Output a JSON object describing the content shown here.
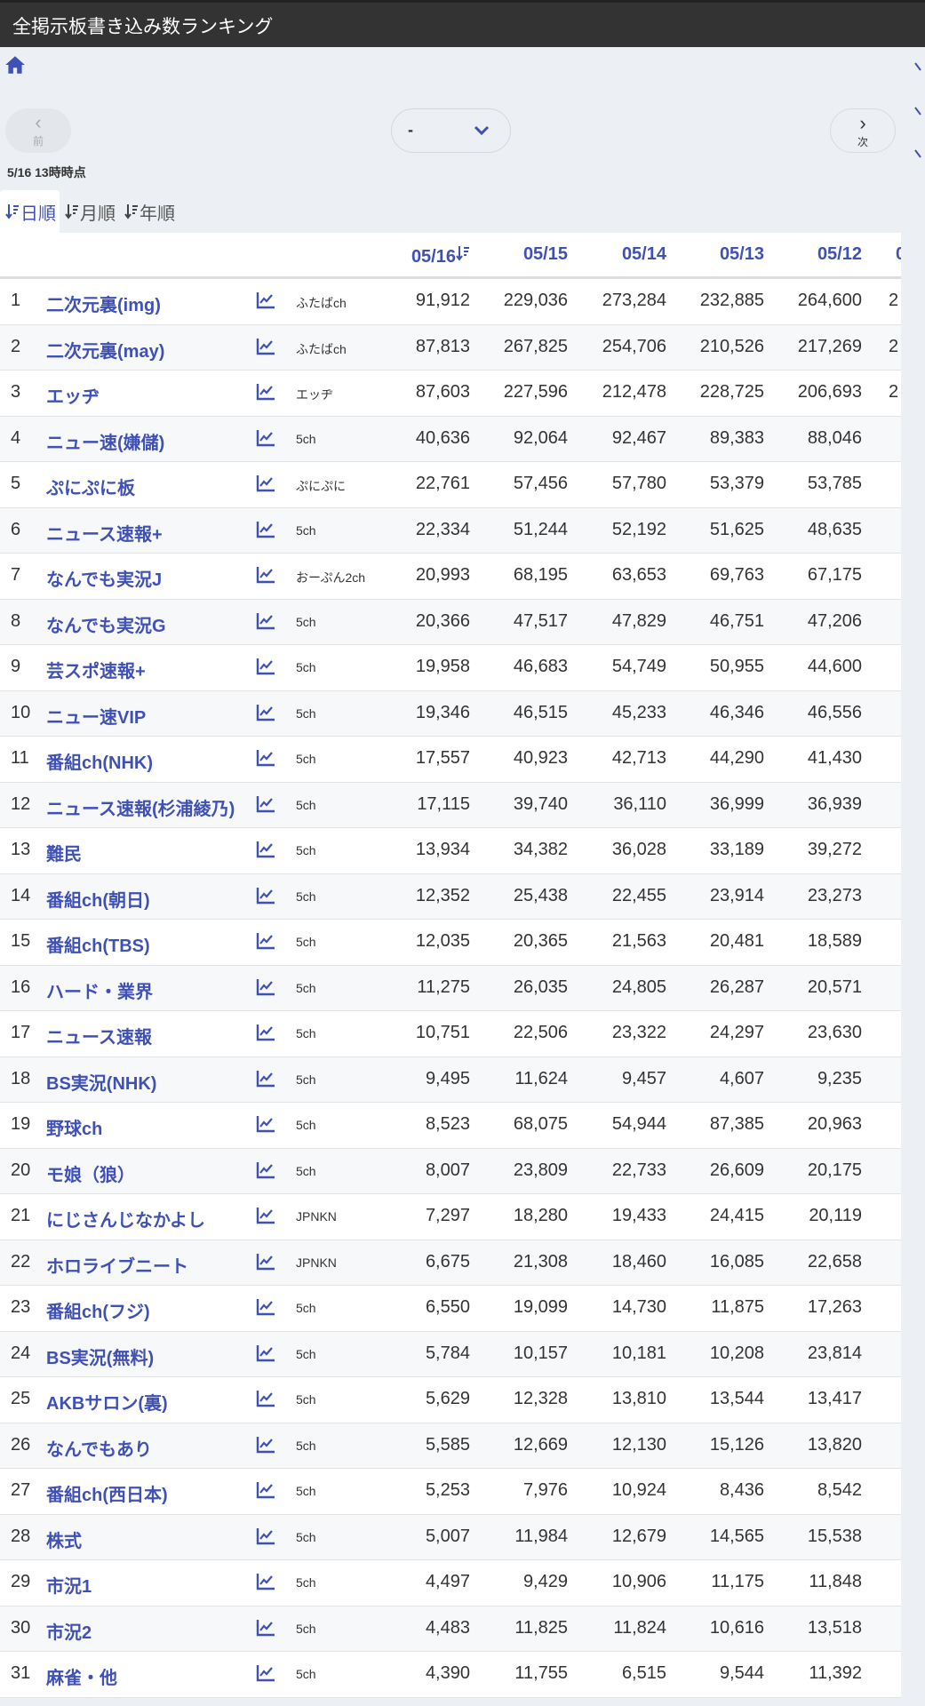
{
  "header": {
    "title": "全掲示板書き込み数ランキング"
  },
  "nav": {
    "prev_label": "前",
    "next_label": "次",
    "select_value": "-"
  },
  "timestamp": "5/16 13時時点",
  "tabs": [
    {
      "label": "日順",
      "active": true
    },
    {
      "label": "月順"
    },
    {
      "label": "年順"
    }
  ],
  "colors": {
    "accent": "#3f51b5",
    "topbar": "#333333"
  },
  "table": {
    "columns": [
      "05/16",
      "05/15",
      "05/14",
      "05/13",
      "05/12",
      "0"
    ],
    "rows": [
      {
        "rank": "1",
        "name": "二次元裏(img)",
        "source": "ふたばch",
        "values": [
          "91,912",
          "229,036",
          "273,284",
          "232,885",
          "264,600",
          "2"
        ]
      },
      {
        "rank": "2",
        "name": "二次元裏(may)",
        "source": "ふたばch",
        "values": [
          "87,813",
          "267,825",
          "254,706",
          "210,526",
          "217,269",
          "2"
        ]
      },
      {
        "rank": "3",
        "name": "エッヂ",
        "source": "エッヂ",
        "values": [
          "87,603",
          "227,596",
          "212,478",
          "228,725",
          "206,693",
          "2"
        ]
      },
      {
        "rank": "4",
        "name": "ニュー速(嫌儲)",
        "source": "5ch",
        "values": [
          "40,636",
          "92,064",
          "92,467",
          "89,383",
          "88,046",
          ""
        ]
      },
      {
        "rank": "5",
        "name": "ぷにぷに板",
        "source": "ぷにぷに",
        "values": [
          "22,761",
          "57,456",
          "57,780",
          "53,379",
          "53,785",
          ""
        ]
      },
      {
        "rank": "6",
        "name": "ニュース速報+",
        "source": "5ch",
        "values": [
          "22,334",
          "51,244",
          "52,192",
          "51,625",
          "48,635",
          ""
        ]
      },
      {
        "rank": "7",
        "name": "なんでも実況J",
        "source": "おーぷん2ch",
        "values": [
          "20,993",
          "68,195",
          "63,653",
          "69,763",
          "67,175",
          ""
        ]
      },
      {
        "rank": "8",
        "name": "なんでも実況G",
        "source": "5ch",
        "values": [
          "20,366",
          "47,517",
          "47,829",
          "46,751",
          "47,206",
          ""
        ]
      },
      {
        "rank": "9",
        "name": "芸スポ速報+",
        "source": "5ch",
        "values": [
          "19,958",
          "46,683",
          "54,749",
          "50,955",
          "44,600",
          ""
        ]
      },
      {
        "rank": "10",
        "name": "ニュー速VIP",
        "source": "5ch",
        "values": [
          "19,346",
          "46,515",
          "45,233",
          "46,346",
          "46,556",
          ""
        ]
      },
      {
        "rank": "11",
        "name": "番組ch(NHK)",
        "source": "5ch",
        "values": [
          "17,557",
          "40,923",
          "42,713",
          "44,290",
          "41,430",
          ""
        ]
      },
      {
        "rank": "12",
        "name": "ニュース速報(杉浦綾乃)",
        "source": "5ch",
        "values": [
          "17,115",
          "39,740",
          "36,110",
          "36,999",
          "36,939",
          ""
        ]
      },
      {
        "rank": "13",
        "name": "難民",
        "source": "5ch",
        "values": [
          "13,934",
          "34,382",
          "36,028",
          "33,189",
          "39,272",
          ""
        ]
      },
      {
        "rank": "14",
        "name": "番組ch(朝日)",
        "source": "5ch",
        "values": [
          "12,352",
          "25,438",
          "22,455",
          "23,914",
          "23,273",
          ""
        ]
      },
      {
        "rank": "15",
        "name": "番組ch(TBS)",
        "source": "5ch",
        "values": [
          "12,035",
          "20,365",
          "21,563",
          "20,481",
          "18,589",
          ""
        ]
      },
      {
        "rank": "16",
        "name": "ハード・業界",
        "source": "5ch",
        "values": [
          "11,275",
          "26,035",
          "24,805",
          "26,287",
          "20,571",
          ""
        ]
      },
      {
        "rank": "17",
        "name": "ニュース速報",
        "source": "5ch",
        "values": [
          "10,751",
          "22,506",
          "23,322",
          "24,297",
          "23,630",
          ""
        ]
      },
      {
        "rank": "18",
        "name": "BS実況(NHK)",
        "source": "5ch",
        "values": [
          "9,495",
          "11,624",
          "9,457",
          "4,607",
          "9,235",
          ""
        ]
      },
      {
        "rank": "19",
        "name": "野球ch",
        "source": "5ch",
        "values": [
          "8,523",
          "68,075",
          "54,944",
          "87,385",
          "20,963",
          ""
        ]
      },
      {
        "rank": "20",
        "name": "モ娘（狼）",
        "source": "5ch",
        "values": [
          "8,007",
          "23,809",
          "22,733",
          "26,609",
          "20,175",
          ""
        ]
      },
      {
        "rank": "21",
        "name": "にじさんじなかよし",
        "source": "JPNKN",
        "values": [
          "7,297",
          "18,280",
          "19,433",
          "24,415",
          "20,119",
          ""
        ]
      },
      {
        "rank": "22",
        "name": "ホロライブニート",
        "source": "JPNKN",
        "values": [
          "6,675",
          "21,308",
          "18,460",
          "16,085",
          "22,658",
          ""
        ]
      },
      {
        "rank": "23",
        "name": "番組ch(フジ)",
        "source": "5ch",
        "values": [
          "6,550",
          "19,099",
          "14,730",
          "11,875",
          "17,263",
          ""
        ]
      },
      {
        "rank": "24",
        "name": "BS実況(無料)",
        "source": "5ch",
        "values": [
          "5,784",
          "10,157",
          "10,181",
          "10,208",
          "23,814",
          ""
        ]
      },
      {
        "rank": "25",
        "name": "AKBサロン(裏)",
        "source": "5ch",
        "values": [
          "5,629",
          "12,328",
          "13,810",
          "13,544",
          "13,417",
          ""
        ]
      },
      {
        "rank": "26",
        "name": "なんでもあり",
        "source": "5ch",
        "values": [
          "5,585",
          "12,669",
          "12,130",
          "15,126",
          "13,820",
          ""
        ]
      },
      {
        "rank": "27",
        "name": "番組ch(西日本)",
        "source": "5ch",
        "values": [
          "5,253",
          "7,976",
          "10,924",
          "8,436",
          "8,542",
          ""
        ]
      },
      {
        "rank": "28",
        "name": "株式",
        "source": "5ch",
        "values": [
          "5,007",
          "11,984",
          "12,679",
          "14,565",
          "15,538",
          ""
        ]
      },
      {
        "rank": "29",
        "name": "市況1",
        "source": "5ch",
        "values": [
          "4,497",
          "9,429",
          "10,906",
          "11,175",
          "11,848",
          ""
        ]
      },
      {
        "rank": "30",
        "name": "市況2",
        "source": "5ch",
        "values": [
          "4,483",
          "11,825",
          "11,824",
          "10,616",
          "13,518",
          ""
        ]
      },
      {
        "rank": "31",
        "name": "麻雀・他",
        "source": "5ch",
        "values": [
          "4,390",
          "11,755",
          "6,515",
          "9,544",
          "11,392",
          ""
        ]
      }
    ]
  }
}
